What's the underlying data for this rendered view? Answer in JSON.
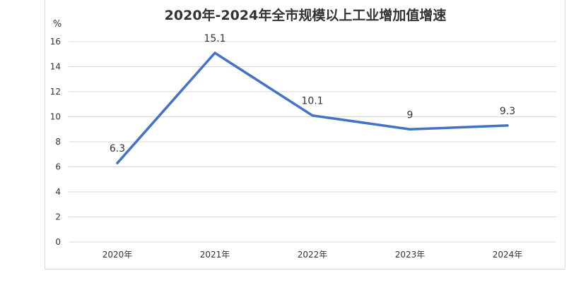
{
  "chart_data": {
    "type": "line",
    "title": "2020年-2024年全市规模以上工业增加值增速",
    "ylabel": "%",
    "xlabel": "",
    "categories": [
      "2020年",
      "2021年",
      "2022年",
      "2023年",
      "2024年"
    ],
    "series": [
      {
        "values": [
          6.3,
          15.1,
          10.1,
          9,
          9.3
        ]
      }
    ],
    "data_labels": [
      "6.3",
      "15.1",
      "10.1",
      "9",
      "9.3"
    ],
    "ylim": [
      0,
      16
    ],
    "yticks": [
      0,
      2,
      4,
      6,
      8,
      10,
      12,
      14,
      16
    ],
    "grid": true,
    "line_color": "#4472c4"
  }
}
